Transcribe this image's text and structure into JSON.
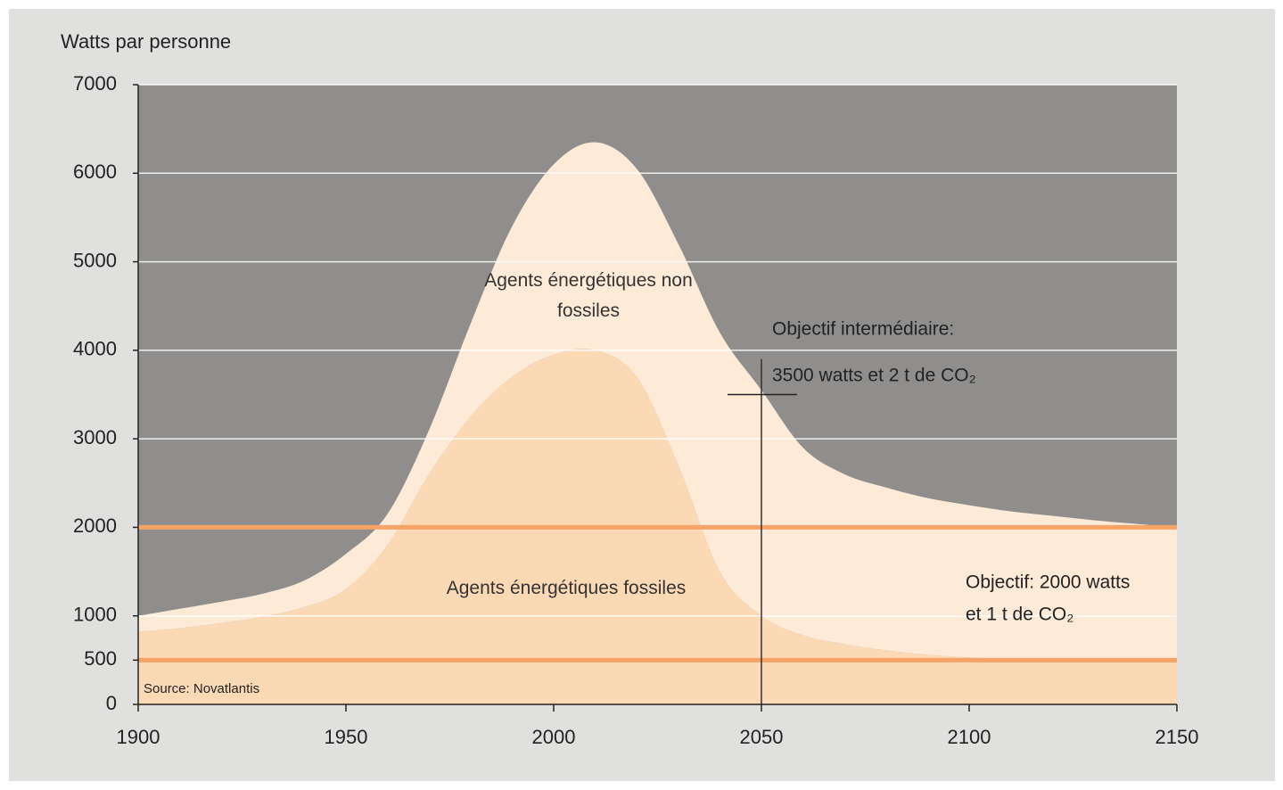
{
  "chart_data": {
    "type": "stacked_area",
    "y_label": "Watts par personne",
    "x": [
      1900,
      1910,
      1920,
      1930,
      1940,
      1950,
      1960,
      1970,
      1980,
      1990,
      2000,
      2010,
      2020,
      2030,
      2040,
      2050,
      2060,
      2070,
      2080,
      2090,
      2100,
      2110,
      2120,
      2130,
      2140,
      2150
    ],
    "series": [
      {
        "name": "Agents énergétiques fossiles",
        "color": "#fcd9b5",
        "values": [
          820,
          860,
          920,
          990,
          1100,
          1300,
          1800,
          2600,
          3250,
          3700,
          3950,
          4000,
          3700,
          2700,
          1500,
          1000,
          780,
          680,
          610,
          560,
          530,
          510,
          500,
          500,
          500,
          500
        ]
      },
      {
        "name": "Agents énergétiques non fossiles",
        "color": "#fdebd8",
        "values": [
          180,
          220,
          240,
          260,
          300,
          400,
          350,
          500,
          1050,
          1700,
          2150,
          2350,
          2350,
          2500,
          2700,
          2550,
          2120,
          1920,
          1840,
          1770,
          1720,
          1670,
          1630,
          1580,
          1540,
          1500
        ]
      }
    ],
    "xlim": [
      1900,
      2150
    ],
    "xticks": [
      1900,
      1950,
      2000,
      2050,
      2100,
      2150
    ],
    "ylim": [
      0,
      7000
    ],
    "yticks": [
      0,
      500,
      1000,
      2000,
      3000,
      4000,
      5000,
      6000,
      7000
    ],
    "grid": true,
    "background": "#8f8e8d",
    "reference_lines": [
      {
        "value": 2000,
        "color": "#f5a366"
      },
      {
        "value": 500,
        "color": "#f5a366"
      }
    ],
    "marker": {
      "x": 2050,
      "y": 3500,
      "y_top": 3900
    },
    "annotations": [
      "Objectif intermédiaire:",
      "3500 watts et 2 t de CO₂",
      "Objectif: 2000 watts",
      "et 1 t de CO₂",
      "Source: Novatlantis"
    ]
  }
}
